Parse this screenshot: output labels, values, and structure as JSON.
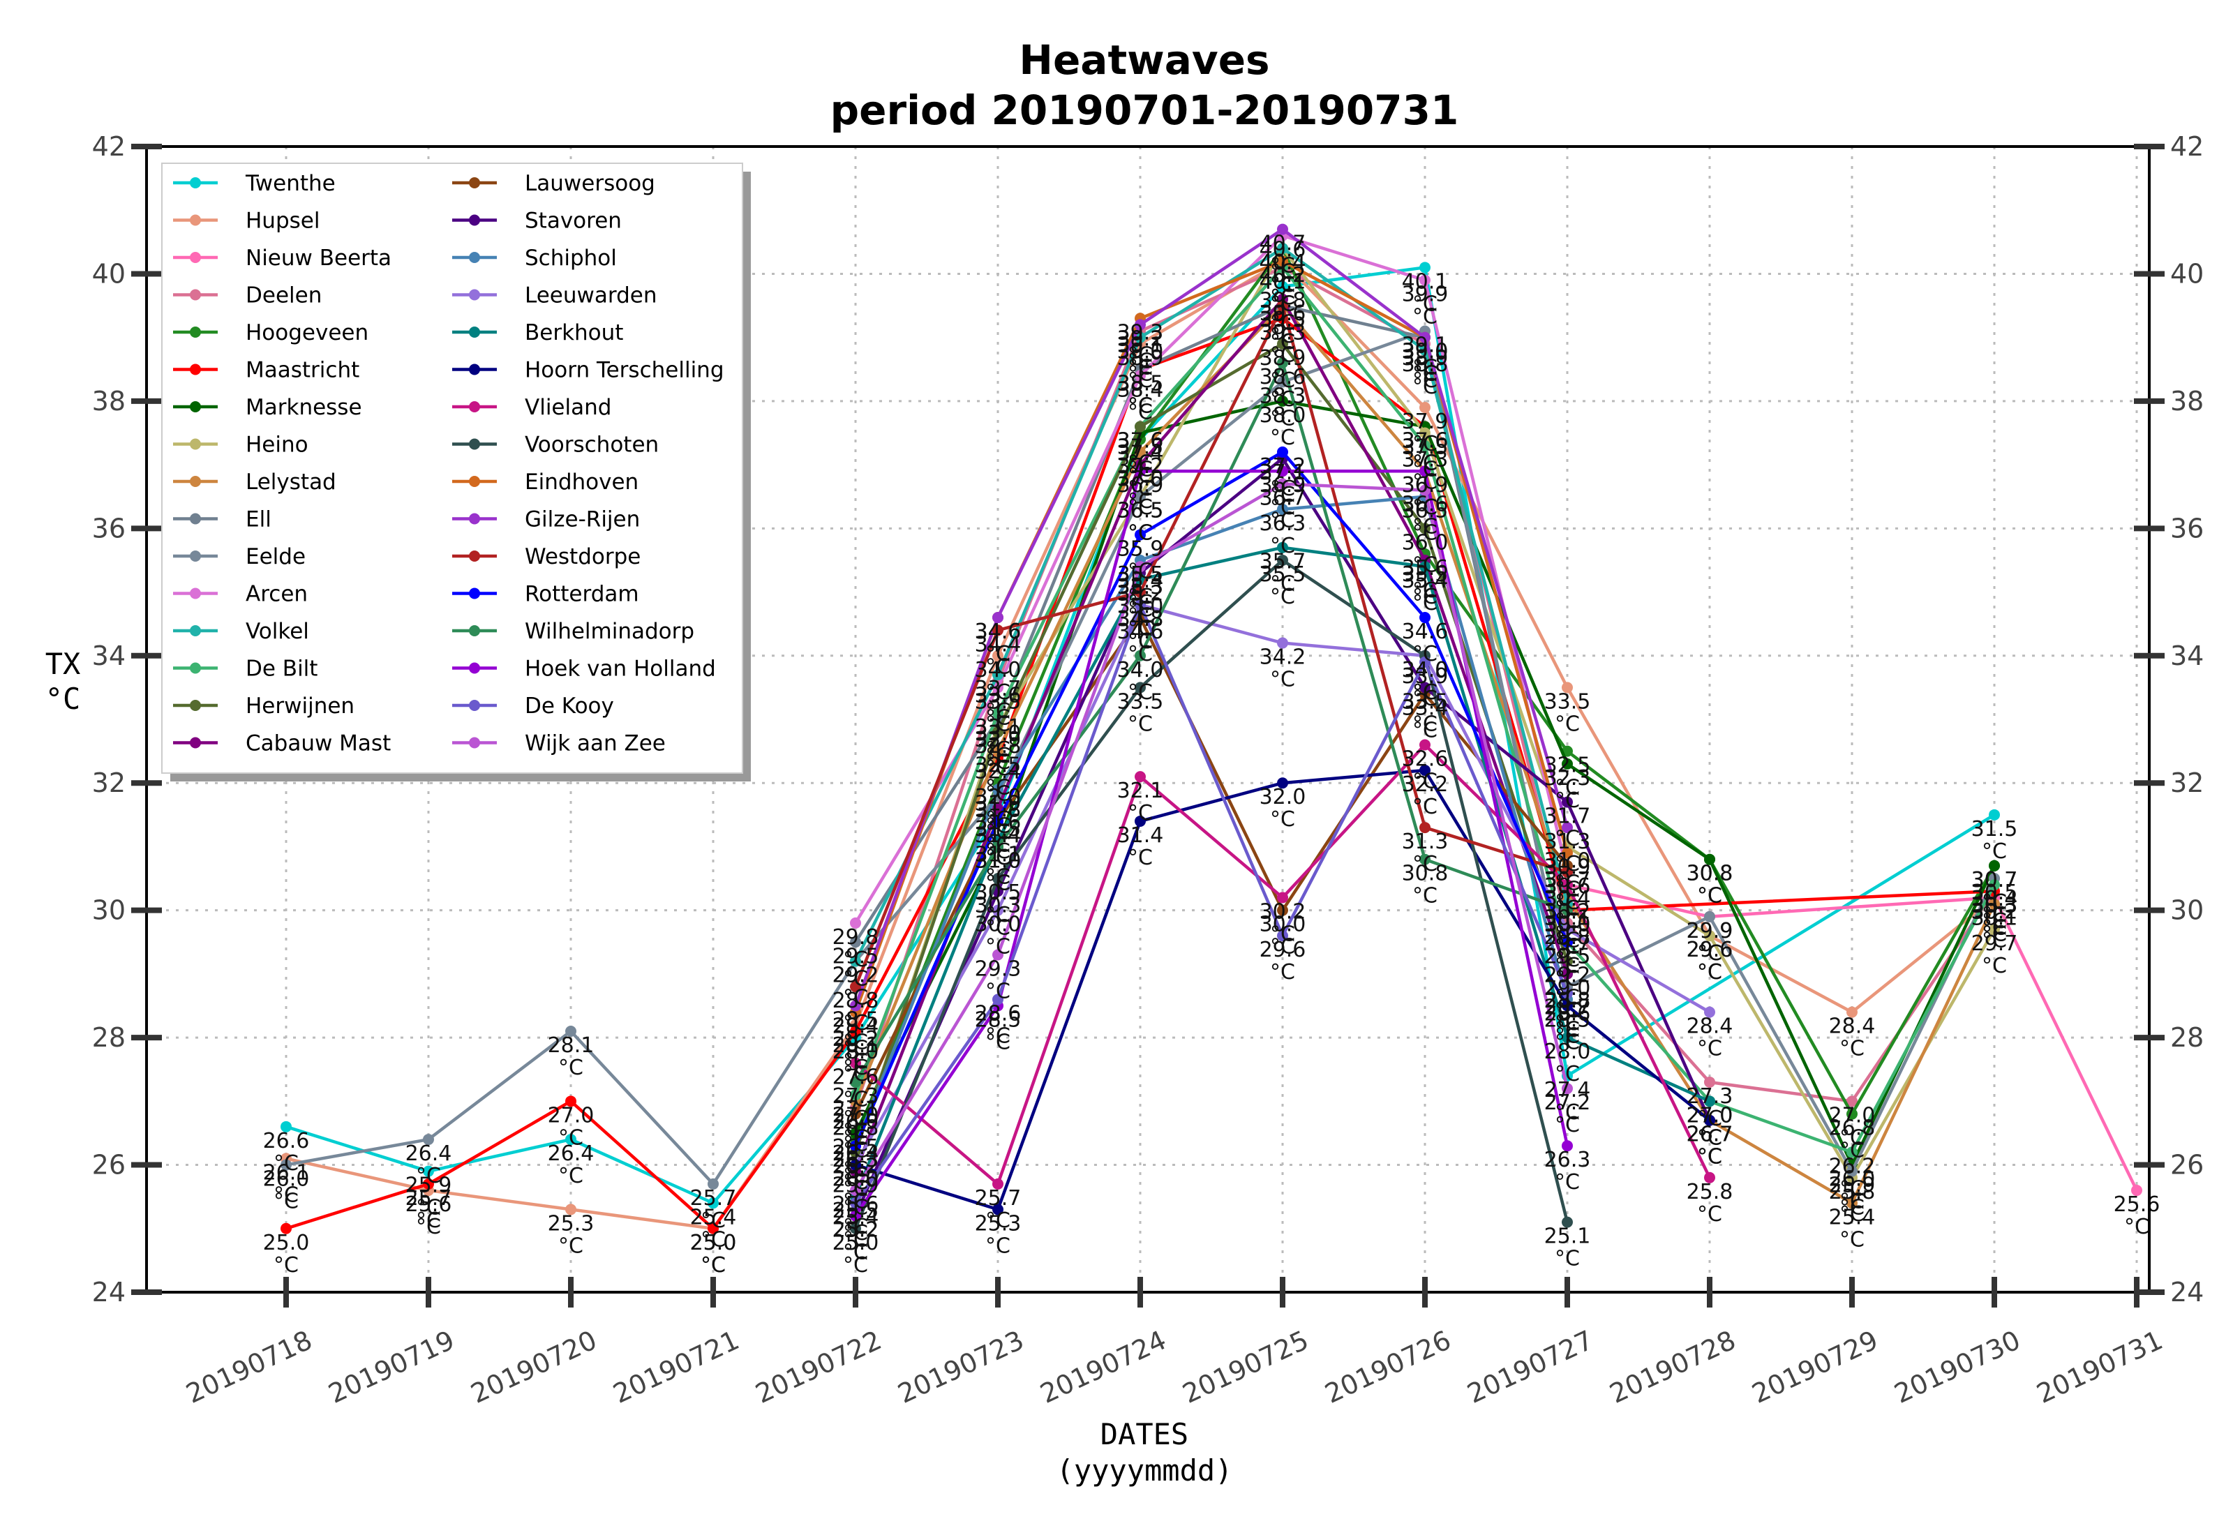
{
  "chart_data": {
    "type": "line",
    "title_lines": [
      "Heatwaves",
      "period 20190701-20190731"
    ],
    "xlabel_lines": [
      "DATES",
      "(yyyymmdd)"
    ],
    "ylabel_lines": [
      "TX",
      "°C"
    ],
    "unit": "°C",
    "categories": [
      "20190718",
      "20190719",
      "20190720",
      "20190721",
      "20190722",
      "20190723",
      "20190724",
      "20190725",
      "20190726",
      "20190727",
      "20190728",
      "20190729",
      "20190730",
      "20190731"
    ],
    "ylim": [
      24,
      42
    ],
    "yticks": [
      "24",
      "26",
      "28",
      "30",
      "32",
      "34",
      "36",
      "38",
      "40",
      "42"
    ],
    "grid": true,
    "legend_position": "top-left",
    "legend_columns": 2,
    "series": [
      {
        "name": "Twenthe",
        "color": "#00ced1",
        "values": [
          26.6,
          25.9,
          26.4,
          25.4,
          28.0,
          31.5,
          37.4,
          39.8,
          40.1,
          27.4,
          null,
          null,
          31.5,
          null
        ]
      },
      {
        "name": "Hupsel",
        "color": "#e9967a",
        "values": [
          26.1,
          25.6,
          25.3,
          25.0,
          28.2,
          34.0,
          38.9,
          40.2,
          37.9,
          33.5,
          29.6,
          28.4,
          30.2,
          null
        ]
      },
      {
        "name": "Nieuw Beerta",
        "color": "#ff69b4",
        "values": [
          null,
          null,
          null,
          null,
          null,
          null,
          null,
          null,
          null,
          30.4,
          29.9,
          null,
          30.2,
          25.6
        ]
      },
      {
        "name": "Deelen",
        "color": "#db7093",
        "values": [
          null,
          null,
          null,
          null,
          26.9,
          33.6,
          39.1,
          40.1,
          38.9,
          29.8,
          27.3,
          27.0,
          30.3,
          null
        ]
      },
      {
        "name": "Hoogeveen",
        "color": "#228b22",
        "values": [
          null,
          null,
          null,
          null,
          26.4,
          32.0,
          37.4,
          40.4,
          35.6,
          32.5,
          30.8,
          26.8,
          30.7,
          null
        ]
      },
      {
        "name": "Maastricht",
        "color": "#ff0000",
        "values": [
          25.0,
          25.7,
          27.0,
          25.0,
          28.1,
          32.4,
          38.5,
          39.3,
          37.6,
          30.0,
          null,
          null,
          30.3,
          null
        ]
      },
      {
        "name": "Marknesse",
        "color": "#006400",
        "values": [
          null,
          null,
          null,
          null,
          26.5,
          31.0,
          37.5,
          38.0,
          37.6,
          32.3,
          30.8,
          26.0,
          30.7,
          null
        ]
      },
      {
        "name": "Heino",
        "color": "#bdb76b",
        "values": [
          null,
          null,
          null,
          null,
          26.2,
          32.9,
          36.5,
          40.4,
          37.5,
          31.0,
          29.6,
          25.8,
          29.7,
          null
        ]
      },
      {
        "name": "Lelystad",
        "color": "#cd853f",
        "values": [
          null,
          null,
          null,
          null,
          27.0,
          32.5,
          37.2,
          39.5,
          36.9,
          30.2,
          26.7,
          25.4,
          30.1,
          null
        ]
      },
      {
        "name": "Ell",
        "color": "#708090",
        "values": [
          null,
          null,
          null,
          null,
          29.5,
          33.0,
          38.5,
          39.5,
          39.0,
          28.8,
          null,
          null,
          null,
          null
        ]
      },
      {
        "name": "Eelde",
        "color": "#778899",
        "values": [
          26.0,
          26.4,
          28.1,
          25.7,
          29.2,
          31.8,
          36.5,
          38.3,
          39.1,
          28.8,
          29.9,
          25.9,
          30.5,
          null
        ]
      },
      {
        "name": "Arcen",
        "color": "#da70d6",
        "values": [
          null,
          null,
          null,
          null,
          29.8,
          33.5,
          38.4,
          40.6,
          39.9,
          30.6,
          null,
          null,
          null,
          null
        ]
      },
      {
        "name": "Volkel",
        "color": "#20b2aa",
        "values": [
          null,
          null,
          null,
          null,
          29.2,
          33.7,
          39.0,
          40.4,
          38.8,
          30.1,
          null,
          null,
          null,
          null
        ]
      },
      {
        "name": "De Bilt",
        "color": "#3cb371",
        "values": [
          null,
          null,
          null,
          null,
          27.1,
          33.1,
          37.6,
          40.1,
          37.3,
          29.5,
          27.0,
          26.2,
          30.4,
          null
        ]
      },
      {
        "name": "Herwijnen",
        "color": "#556b2f",
        "values": [
          null,
          null,
          null,
          null,
          26.2,
          32.8,
          37.6,
          38.9,
          36.0,
          29.2,
          null,
          null,
          null,
          null
        ]
      },
      {
        "name": "Cabauw Mast",
        "color": "#800080",
        "values": [
          null,
          null,
          null,
          null,
          25.9,
          31.6,
          37.0,
          39.6,
          35.5,
          29.0,
          null,
          null,
          null,
          null
        ]
      },
      {
        "name": "Lauwersoog",
        "color": "#8b4513",
        "values": [
          null,
          null,
          null,
          null,
          26.8,
          31.4,
          34.6,
          30.0,
          33.4,
          30.7,
          null,
          null,
          null,
          null
        ]
      },
      {
        "name": "Stavoren",
        "color": "#4b0082",
        "values": [
          null,
          null,
          null,
          null,
          25.2,
          30.3,
          35.3,
          37.1,
          33.5,
          31.7,
          26.7,
          null,
          null,
          null
        ]
      },
      {
        "name": "Schiphol",
        "color": "#4682b4",
        "values": [
          null,
          null,
          null,
          null,
          26.3,
          31.9,
          35.5,
          36.3,
          36.5,
          28.6,
          null,
          null,
          null,
          null
        ]
      },
      {
        "name": "Leeuwarden",
        "color": "#9370db",
        "values": [
          null,
          null,
          null,
          null,
          26.0,
          30.0,
          34.8,
          34.2,
          34.0,
          29.7,
          28.4,
          null,
          null,
          null
        ]
      },
      {
        "name": "Berkhout",
        "color": "#008080",
        "values": [
          null,
          null,
          null,
          null,
          25.5,
          31.1,
          35.2,
          35.7,
          35.4,
          28.0,
          27.0,
          null,
          null,
          null
        ]
      },
      {
        "name": "Hoorn Terschelling",
        "color": "#000080",
        "values": [
          null,
          null,
          null,
          null,
          26.0,
          25.3,
          31.4,
          32.0,
          32.2,
          28.5,
          26.7,
          null,
          null,
          null
        ]
      },
      {
        "name": "Vlieland",
        "color": "#c71585",
        "values": [
          null,
          null,
          null,
          null,
          27.6,
          25.7,
          32.1,
          30.2,
          32.6,
          30.4,
          25.8,
          null,
          null,
          null
        ]
      },
      {
        "name": "Voorschoten",
        "color": "#2f4f4f",
        "values": [
          null,
          null,
          null,
          null,
          25.0,
          30.5,
          33.5,
          35.5,
          34.0,
          25.1,
          null,
          null,
          null,
          null
        ]
      },
      {
        "name": "Eindhoven",
        "color": "#d2691e",
        "values": [
          null,
          null,
          null,
          null,
          28.4,
          34.6,
          39.3,
          40.2,
          39.0,
          30.9,
          null,
          null,
          null,
          null
        ]
      },
      {
        "name": "Gilze-Rijen",
        "color": "#9932cc",
        "values": [
          null,
          null,
          null,
          null,
          28.5,
          34.6,
          39.2,
          40.7,
          39.0,
          31.3,
          null,
          null,
          null,
          null
        ]
      },
      {
        "name": "Westdorpe",
        "color": "#b22222",
        "values": [
          null,
          null,
          null,
          null,
          28.8,
          34.4,
          35.0,
          39.5,
          31.3,
          30.6,
          null,
          null,
          null,
          null
        ]
      },
      {
        "name": "Rotterdam",
        "color": "#0000ff",
        "values": [
          null,
          null,
          null,
          null,
          26.3,
          31.4,
          35.9,
          37.2,
          34.6,
          29.5,
          null,
          null,
          null,
          null
        ]
      },
      {
        "name": "Wilhelminadorp",
        "color": "#2e8b57",
        "values": [
          null,
          null,
          null,
          null,
          27.3,
          31.0,
          34.0,
          38.6,
          30.8,
          30.0,
          null,
          null,
          null,
          null
        ]
      },
      {
        "name": "Hoek van Holland",
        "color": "#9400d3",
        "values": [
          null,
          null,
          null,
          null,
          25.2,
          28.5,
          36.9,
          36.9,
          36.9,
          26.3,
          null,
          null,
          null,
          null
        ]
      },
      {
        "name": "De Kooy",
        "color": "#6a5acd",
        "values": [
          null,
          null,
          null,
          null,
          25.4,
          28.6,
          34.8,
          29.6,
          33.9,
          28.7,
          null,
          null,
          null,
          null
        ]
      },
      {
        "name": "Wijk aan Zee",
        "color": "#ba55d3",
        "values": [
          null,
          null,
          null,
          null,
          25.6,
          29.3,
          35.4,
          36.7,
          36.6,
          27.2,
          null,
          null,
          null,
          null
        ]
      }
    ]
  }
}
